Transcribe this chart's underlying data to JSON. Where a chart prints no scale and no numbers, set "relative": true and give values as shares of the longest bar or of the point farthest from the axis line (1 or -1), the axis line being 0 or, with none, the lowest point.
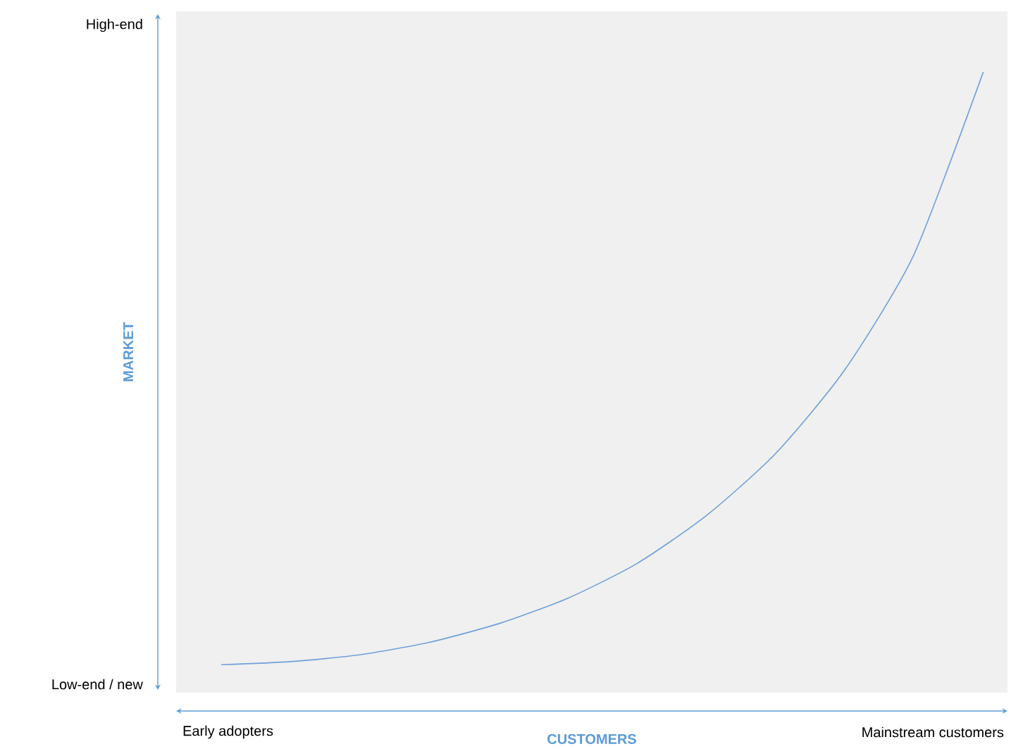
{
  "chart_data": {
    "type": "line",
    "relative": true,
    "xlabel": "CUSTOMERS",
    "ylabel": "MARKET",
    "categories": [
      null,
      null,
      null,
      null,
      null,
      null,
      null,
      null,
      null,
      null,
      null,
      null
    ],
    "series": [
      {
        "color": "#6fa0d8",
        "values": [
          0.045,
          0.05,
          0.061,
          0.081,
          0.111,
          0.152,
          0.208,
          0.285,
          0.385,
          0.52,
          0.706,
          1
        ]
      }
    ],
    "annotations": [
      "High-end",
      "Low-end / new",
      "Early adopters",
      "Mainstream customers"
    ],
    "marker": "none",
    "line_style": "solid"
  }
}
